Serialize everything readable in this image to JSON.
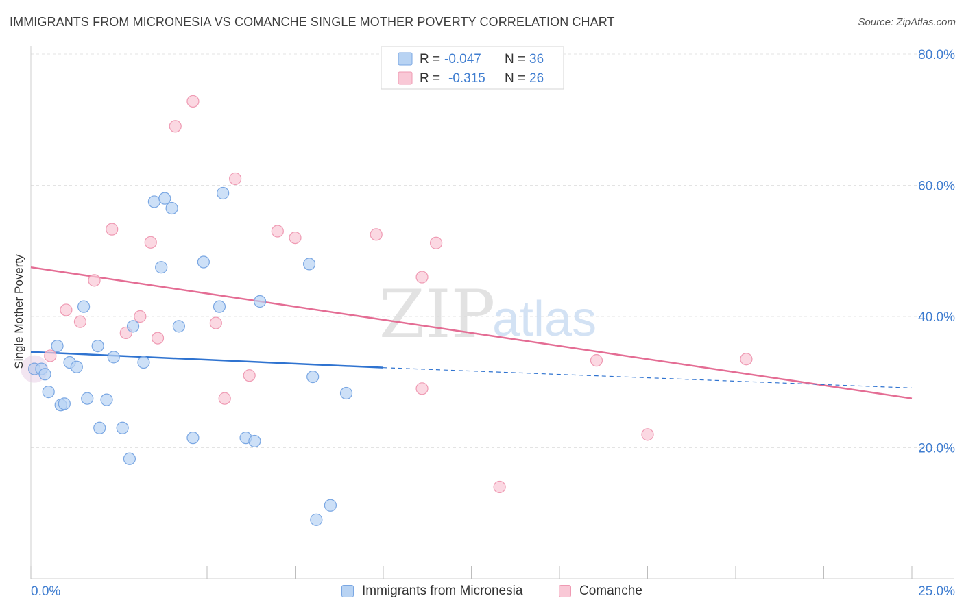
{
  "title": "IMMIGRANTS FROM MICRONESIA VS COMANCHE SINGLE MOTHER POVERTY CORRELATION CHART",
  "source": "Source: ZipAtlas.com",
  "watermark": {
    "zip": "ZIP",
    "atlas": "atlas"
  },
  "colors": {
    "blue_fill": "#b8d3f3",
    "blue_stroke": "#7aa7e3",
    "blue_line": "#2f73d0",
    "pink_fill": "#f9c8d6",
    "pink_stroke": "#ef9ab3",
    "pink_line": "#e46d94",
    "tick_label": "#3f7dd0"
  },
  "legend_top": {
    "rows": [
      {
        "r_label": "R =",
        "r_value": "-0.047",
        "n_label": "N =",
        "n_value": "36"
      },
      {
        "r_label": "R =",
        "r_value": "-0.315",
        "n_label": "N =",
        "n_value": "26"
      }
    ]
  },
  "legend_bottom": [
    {
      "label": "Immigrants from Micronesia"
    },
    {
      "label": "Comanche"
    }
  ],
  "chart_data": {
    "type": "scatter",
    "ylabel": "Single Mother Poverty",
    "xlim": [
      0,
      25
    ],
    "ylim": [
      0,
      80
    ],
    "x_tick_labels": [
      "0.0%",
      "25.0%"
    ],
    "y_tick_labels": [
      "20.0%",
      "40.0%",
      "60.0%",
      "80.0%"
    ],
    "y_ticks": [
      20,
      40,
      60,
      80
    ],
    "x_ticks": [
      0,
      2.5,
      5,
      7.5,
      10,
      12.5,
      15,
      17.5,
      20,
      22.5,
      25
    ],
    "grid": true,
    "series": [
      {
        "name": "Immigrants from Micronesia",
        "r": -0.047,
        "n": 36,
        "points": [
          [
            0.1,
            32.0
          ],
          [
            0.3,
            32.0
          ],
          [
            0.4,
            31.2
          ],
          [
            0.5,
            28.5
          ],
          [
            0.75,
            35.5
          ],
          [
            0.85,
            26.5
          ],
          [
            0.95,
            26.7
          ],
          [
            1.1,
            33.0
          ],
          [
            1.3,
            32.3
          ],
          [
            1.5,
            41.5
          ],
          [
            1.6,
            27.5
          ],
          [
            1.9,
            35.5
          ],
          [
            1.95,
            23.0
          ],
          [
            2.15,
            27.3
          ],
          [
            2.35,
            33.8
          ],
          [
            2.6,
            23.0
          ],
          [
            2.8,
            18.3
          ],
          [
            2.9,
            38.5
          ],
          [
            3.2,
            33.0
          ],
          [
            3.5,
            57.5
          ],
          [
            3.7,
            47.5
          ],
          [
            3.8,
            58.0
          ],
          [
            4.0,
            56.5
          ],
          [
            4.2,
            38.5
          ],
          [
            4.6,
            21.5
          ],
          [
            4.9,
            48.3
          ],
          [
            5.35,
            41.5
          ],
          [
            5.45,
            58.8
          ],
          [
            6.1,
            21.5
          ],
          [
            6.35,
            21.0
          ],
          [
            6.5,
            42.3
          ],
          [
            7.9,
            48.0
          ],
          [
            8.0,
            30.8
          ],
          [
            8.1,
            9.0
          ],
          [
            8.5,
            11.2
          ],
          [
            8.95,
            28.3
          ]
        ],
        "trend": {
          "x0": 0,
          "y0": 34.6,
          "x1": 10,
          "y1": 32.2,
          "dashed_to_x": 25,
          "dashed_to_y": 29.1
        }
      },
      {
        "name": "Comanche",
        "r": -0.315,
        "n": 26,
        "points": [
          [
            0.1,
            32.0
          ],
          [
            0.55,
            34.0
          ],
          [
            1.0,
            41.0
          ],
          [
            1.4,
            39.2
          ],
          [
            1.8,
            45.5
          ],
          [
            2.3,
            53.3
          ],
          [
            2.7,
            37.5
          ],
          [
            3.1,
            40.0
          ],
          [
            3.4,
            51.3
          ],
          [
            3.6,
            36.7
          ],
          [
            4.1,
            69.0
          ],
          [
            4.6,
            72.8
          ],
          [
            5.25,
            39.0
          ],
          [
            5.5,
            27.5
          ],
          [
            5.8,
            61.0
          ],
          [
            6.2,
            31.0
          ],
          [
            7.0,
            53.0
          ],
          [
            7.5,
            52.0
          ],
          [
            9.8,
            52.5
          ],
          [
            11.1,
            29.0
          ],
          [
            11.1,
            46.0
          ],
          [
            11.5,
            51.2
          ],
          [
            13.3,
            14.0
          ],
          [
            16.05,
            33.3
          ],
          [
            17.5,
            22.0
          ],
          [
            20.3,
            33.5
          ]
        ],
        "trend": {
          "x0": 0,
          "y0": 47.5,
          "x1": 25,
          "y1": 27.5
        }
      }
    ]
  }
}
